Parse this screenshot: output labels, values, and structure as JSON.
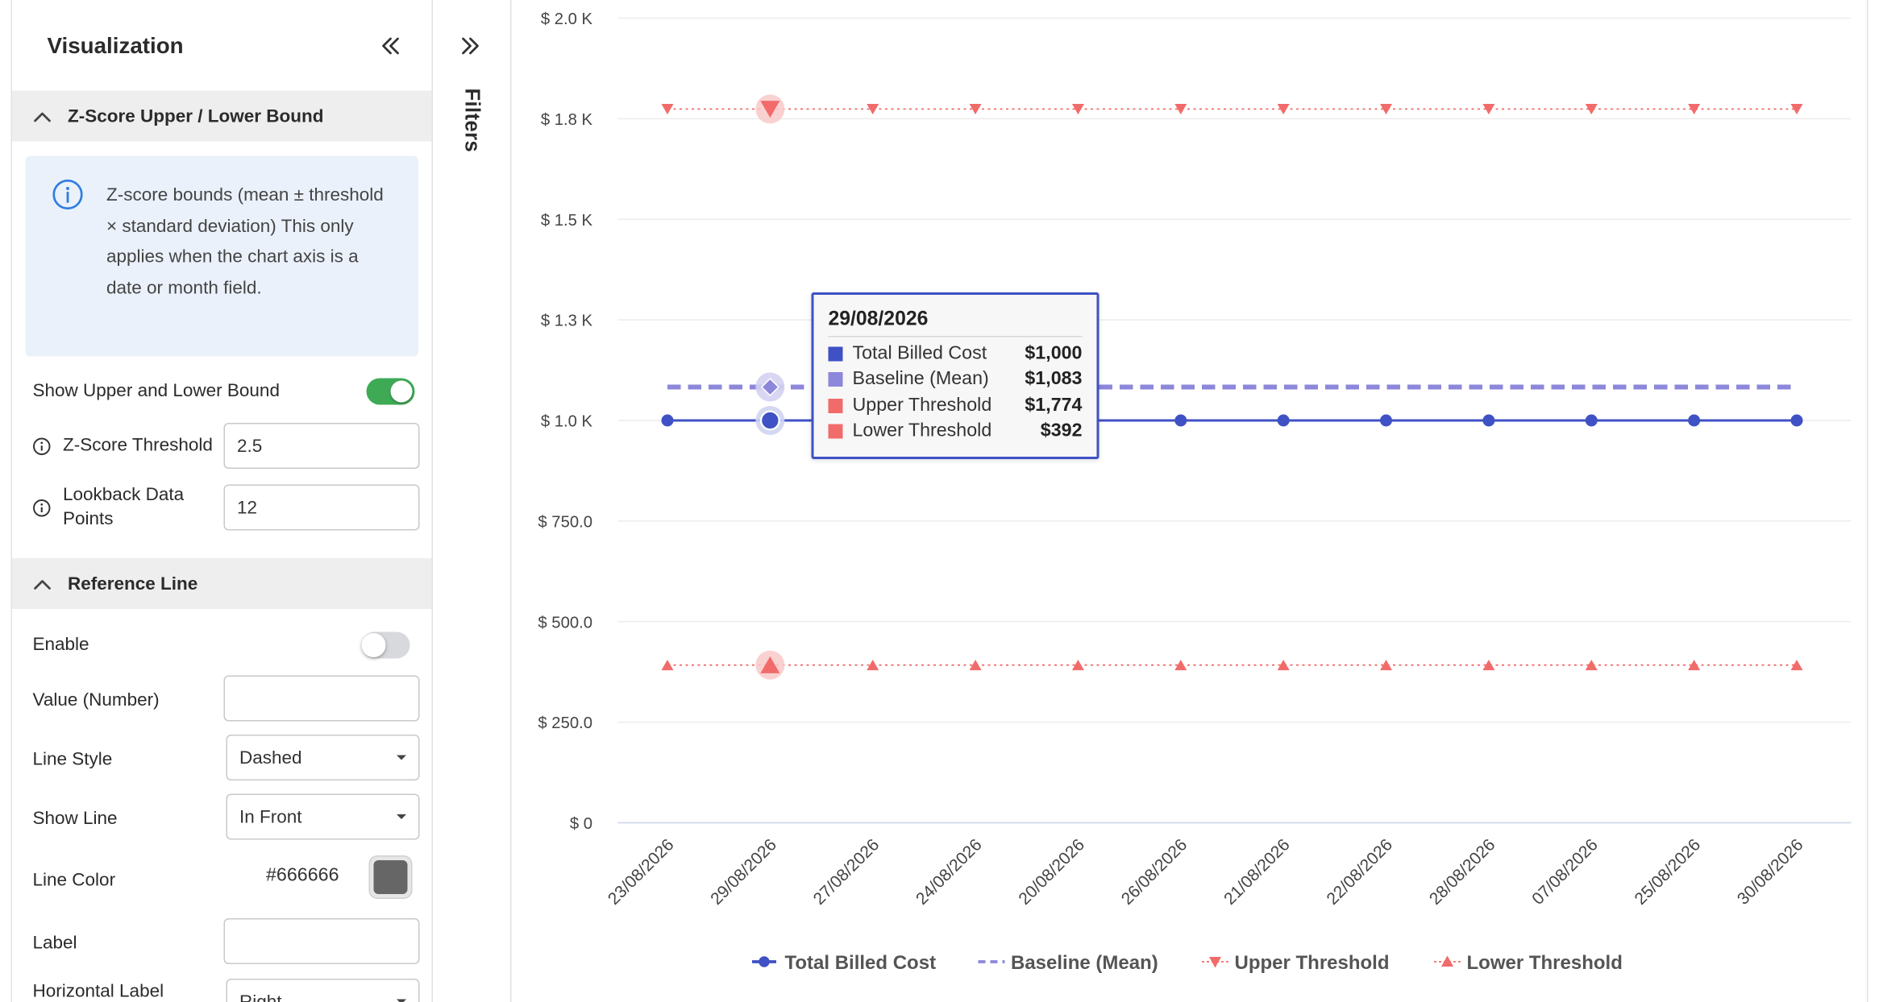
{
  "panel": {
    "title": "Visualization",
    "zscore_section": {
      "label": "Z-Score Upper / Lower Bound",
      "info_text": "Z-score bounds (mean ± threshold × standard deviation) This only applies when the chart axis is a date or month field.",
      "show_bound_label": "Show Upper and Lower Bound",
      "show_bound_on": true,
      "threshold_label": "Z-Score Threshold",
      "threshold_value": "2.5",
      "lookback_label": "Lookback Data Points",
      "lookback_value": "12"
    },
    "reference_section": {
      "label": "Reference Line",
      "enable_label": "Enable",
      "enable_on": false,
      "value_label": "Value (Number)",
      "value_value": "",
      "line_style_label": "Line Style",
      "line_style_value": "Dashed",
      "show_line_label": "Show Line",
      "show_line_value": "In Front",
      "line_color_label": "Line Color",
      "line_color_value": "#666666",
      "label_label": "Label",
      "label_value": "",
      "horizontal_label_label": "Horizontal Label",
      "horizontal_label_value": "Right"
    }
  },
  "filters": {
    "label": "Filters"
  },
  "tooltip": {
    "date": "29/08/2026",
    "rows": [
      {
        "name": "Total Billed Cost",
        "value": "$1,000",
        "color": "#3f51c4"
      },
      {
        "name": "Baseline (Mean)",
        "value": "$1,083",
        "color": "#8c87da"
      },
      {
        "name": "Upper Threshold",
        "value": "$1,774",
        "color": "#f26b6b"
      },
      {
        "name": "Lower Threshold",
        "value": "$392",
        "color": "#f26b6b"
      }
    ]
  },
  "chart_data": {
    "type": "line",
    "categories": [
      "23/08/2026",
      "29/08/2026",
      "27/08/2026",
      "24/08/2026",
      "20/08/2026",
      "26/08/2026",
      "21/08/2026",
      "22/08/2026",
      "28/08/2026",
      "07/08/2026",
      "25/08/2026",
      "30/08/2026"
    ],
    "y_ticks": [
      "$ 0",
      "$ 250.0",
      "$ 500.0",
      "$ 750.0",
      "$ 1.0 K",
      "$ 1.3 K",
      "$ 1.5 K",
      "$ 1.8 K",
      "$ 2.0 K"
    ],
    "ylim": [
      0,
      2000
    ],
    "highlight_index": 1,
    "grid": true,
    "legend_position": "bottom",
    "series": [
      {
        "name": "Total Billed Cost",
        "style": "solid-circle",
        "color": "#3f51c4",
        "values": [
          1000,
          1000,
          1000,
          1000,
          1000,
          1000,
          1000,
          1000,
          1000,
          1000,
          1000,
          1000
        ]
      },
      {
        "name": "Baseline (Mean)",
        "style": "dashed",
        "color": "#8c87da",
        "values": [
          1083,
          1083,
          1083,
          1083,
          1083,
          1083,
          1083,
          1083,
          1083,
          1083,
          1083,
          1083
        ]
      },
      {
        "name": "Upper Threshold",
        "style": "dotted-triangle-down",
        "color": "#f26b6b",
        "values": [
          1774,
          1774,
          1774,
          1774,
          1774,
          1774,
          1774,
          1774,
          1774,
          1774,
          1774,
          1774
        ]
      },
      {
        "name": "Lower Threshold",
        "style": "dotted-triangle-up",
        "color": "#f26b6b",
        "values": [
          392,
          392,
          392,
          392,
          392,
          392,
          392,
          392,
          392,
          392,
          392,
          392
        ]
      }
    ]
  }
}
